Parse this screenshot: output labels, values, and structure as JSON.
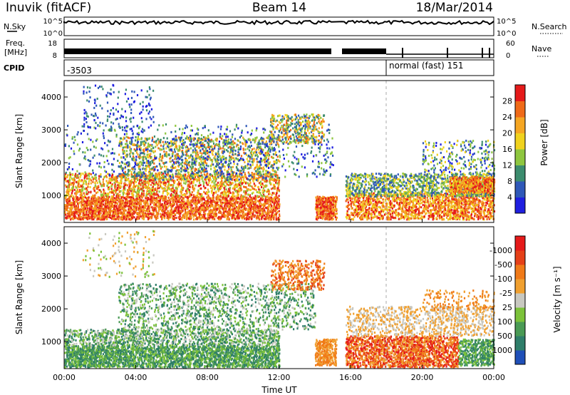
{
  "header": {
    "station": "Inuvik (fitACF)",
    "beam": "Beam 14",
    "date": "18/Mar/2014"
  },
  "strips": {
    "nsky": {
      "label": "N.Sky",
      "ticks": [
        "10^5",
        "10^0"
      ]
    },
    "nsearch": {
      "label": "N.Search",
      "ticks": [
        "10^5",
        "10^0"
      ]
    },
    "freq": {
      "label_line1": "Freq.",
      "label_line2": "[MHz]",
      "ticks": [
        "18",
        "8"
      ]
    },
    "nave": {
      "label": "Nave",
      "ticks": [
        "60",
        "0"
      ]
    },
    "cpid": {
      "label": "CPID",
      "value1": "-3503",
      "value2": "normal (fast) 151"
    }
  },
  "chart_data": [
    {
      "type": "heatmap",
      "panel": "power",
      "ylabel": "Slant Range [km]",
      "ylim": [
        180,
        4500
      ],
      "yticks": [
        "1000",
        "2000",
        "3000",
        "4000"
      ],
      "xlim_hours": [
        0,
        24
      ],
      "colorbar": {
        "label": "Power [dB]",
        "ticks": [
          "4",
          "8",
          "12",
          "16",
          "20",
          "24",
          "28"
        ],
        "colors": [
          "#1f1fe0",
          "#2f58b8",
          "#3c8c6e",
          "#8ec63f",
          "#f0d21e",
          "#f5a623",
          "#ef6a18",
          "#e51a1a"
        ]
      }
    },
    {
      "type": "heatmap",
      "panel": "velocity",
      "ylabel": "Slant Range [km]",
      "ylim": [
        180,
        4500
      ],
      "yticks": [
        "1000",
        "2000",
        "3000",
        "4000"
      ],
      "xlim_hours": [
        0,
        24
      ],
      "xticks": [
        "00:00",
        "04:00",
        "08:00",
        "12:00",
        "16:00",
        "20:00",
        "00:00"
      ],
      "xlabel": "Time UT",
      "colorbar": {
        "label": "Velocity [m s⁻¹]",
        "ticks": [
          "1000",
          "500",
          "100",
          "25",
          "-25",
          "-100",
          "-500",
          "-1000"
        ],
        "colors": [
          "#1f4fb8",
          "#2f7e6a",
          "#4a9a55",
          "#7cc23a",
          "#c8c8c0",
          "#f0a030",
          "#f07a18",
          "#e54018",
          "#e51a1a"
        ]
      }
    }
  ]
}
